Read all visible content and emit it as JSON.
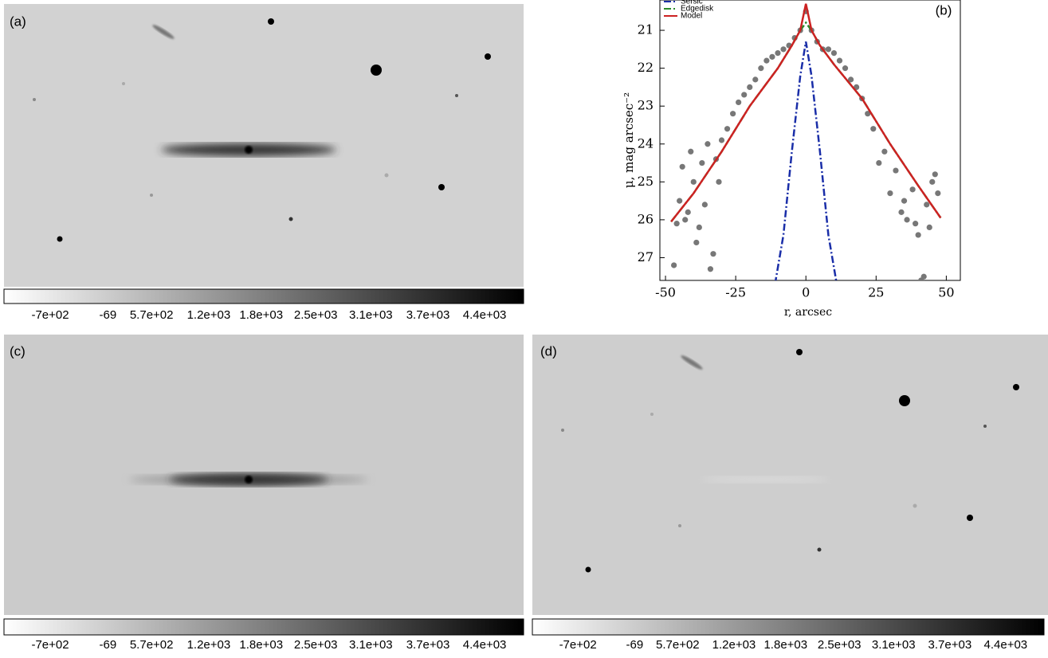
{
  "panels": [
    {
      "label": "(a)",
      "colorbar_labels": [
        "-7e+02",
        "-69",
        "5.7e+02",
        "1.2e+03",
        "1.8e+03",
        "2.5e+03",
        "3.1e+03",
        "3.7e+03",
        "4.4e+03"
      ]
    },
    {
      "label": "(c)",
      "colorbar_labels": [
        "-7e+02",
        "-69",
        "5.7e+02",
        "1.2e+03",
        "1.8e+03",
        "2.5e+03",
        "3.1e+03",
        "3.7e+03",
        "4.4e+03"
      ]
    },
    {
      "label": "(d)",
      "colorbar_labels": [
        "-7e+02",
        "-69",
        "5.7e+02",
        "1.2e+03",
        "1.8e+03",
        "2.5e+03",
        "3.1e+03",
        "3.7e+03",
        "4.4e+03"
      ]
    }
  ],
  "chart_data": {
    "type": "line",
    "label": "(b)",
    "xlabel": "r, arcsec",
    "ylabel": "μ, mag arcsec⁻²",
    "xlim": [
      -52,
      55
    ],
    "ylim": [
      27.6,
      20.2
    ],
    "xticks": [
      -50,
      -25,
      0,
      25,
      50
    ],
    "yticks": [
      21,
      22,
      23,
      24,
      25,
      26,
      27
    ],
    "legend": "upper left",
    "points": {
      "color": "#777777",
      "x": [
        -47,
        -45,
        -44,
        -42,
        -41,
        -40,
        -38,
        -37,
        -36,
        -35,
        -33,
        -32,
        -30,
        -28,
        -26,
        -24,
        -22,
        -20,
        -18,
        -16,
        -14,
        -12,
        -10,
        -8,
        -6,
        -4,
        -2,
        0,
        2,
        4,
        6,
        8,
        10,
        12,
        14,
        16,
        18,
        20,
        22,
        24,
        26,
        28,
        30,
        32,
        34,
        36,
        38,
        40,
        41,
        43,
        44,
        46,
        47,
        -46,
        -39,
        -34,
        -31,
        -43,
        35,
        39,
        42,
        45
      ],
      "y": [
        27.2,
        25.5,
        24.6,
        25.8,
        24.2,
        25.0,
        26.2,
        24.5,
        25.6,
        24.0,
        26.9,
        24.4,
        23.9,
        23.6,
        23.2,
        22.9,
        22.7,
        22.5,
        22.3,
        22.0,
        21.8,
        21.7,
        21.6,
        21.5,
        21.4,
        21.2,
        21.0,
        20.5,
        21.0,
        21.3,
        21.5,
        21.5,
        21.6,
        21.8,
        22.0,
        22.3,
        22.5,
        22.8,
        23.2,
        23.6,
        24.5,
        24.2,
        25.3,
        24.7,
        25.8,
        26.0,
        25.2,
        26.4,
        27.6,
        25.6,
        26.2,
        24.8,
        25.3,
        26.1,
        26.6,
        27.3,
        25.0,
        26.0,
        25.5,
        26.1,
        27.5,
        25.0
      ]
    },
    "series": [
      {
        "name": "Sersic",
        "color": "#1a2ea8",
        "linestyle": "dashdot",
        "x": [
          -11,
          -8,
          -5,
          -2,
          0,
          2,
          5,
          8,
          11
        ],
        "values": [
          27.7,
          26.4,
          24.2,
          22.2,
          21.3,
          22.2,
          24.2,
          26.4,
          27.7
        ]
      },
      {
        "name": "Edgedisk",
        "color": "#2a8a2a",
        "linestyle": "dashdot",
        "x": [
          -48,
          -40,
          -30,
          -20,
          -10,
          -5,
          -2,
          0,
          2,
          5,
          10,
          20,
          30,
          40,
          48
        ],
        "values": [
          26.05,
          25.3,
          24.2,
          23.0,
          22.0,
          21.4,
          21.0,
          20.8,
          21.0,
          21.4,
          21.9,
          22.8,
          24.0,
          25.1,
          25.95
        ]
      },
      {
        "name": "Model",
        "color": "#cc2222",
        "linestyle": "solid",
        "x": [
          -48,
          -40,
          -30,
          -20,
          -10,
          -5,
          -2,
          0,
          2,
          5,
          10,
          20,
          30,
          40,
          48
        ],
        "values": [
          26.05,
          25.3,
          24.2,
          23.0,
          22.0,
          21.4,
          21.0,
          20.3,
          21.0,
          21.4,
          21.9,
          22.8,
          24.0,
          25.1,
          25.95
        ]
      }
    ]
  }
}
